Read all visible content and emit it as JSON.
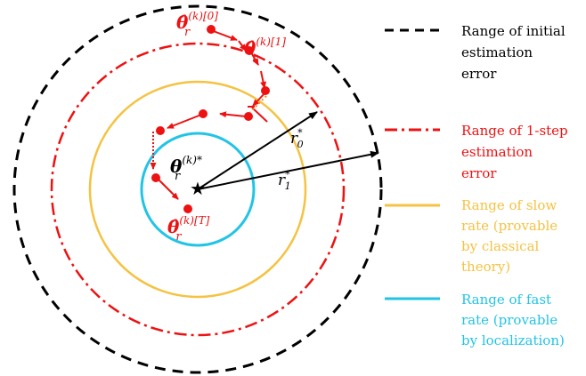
{
  "colors": {
    "initial": "#000000",
    "one_step": "#ee1111",
    "slow": "#f5c242",
    "fast": "#22c4e6",
    "path": "#ee1111",
    "arrow": "#000000"
  },
  "labels": {
    "theta_start": {
      "main": "θ̂",
      "sub": "r",
      "sup": "(k)[0]"
    },
    "theta_one": {
      "main": "θ̂",
      "sub": "r",
      "sup": "(k)[1]"
    },
    "theta_star": {
      "main": "θ",
      "sub": "r",
      "sup": "(k)*"
    },
    "theta_end": {
      "main": "θ̂",
      "sub": "r",
      "sup": "(k)[T]"
    },
    "r0": {
      "main": "r",
      "sub": "0",
      "sup": "*"
    },
    "r1": {
      "main": "r",
      "sub": "1",
      "sup": "*"
    },
    "star_glyph": "★"
  },
  "legend": [
    {
      "key": "initial",
      "lines": [
        "Range of initial",
        "estimation",
        "error"
      ]
    },
    {
      "key": "one_step",
      "lines": [
        "Range of 1-step",
        "estimation",
        "error"
      ]
    },
    {
      "key": "slow",
      "lines": [
        "Range of slow",
        "rate (provable",
        "by classical",
        "theory)"
      ]
    },
    {
      "key": "fast",
      "lines": [
        "Range of fast",
        "rate (provable",
        "by localization)"
      ]
    }
  ]
}
